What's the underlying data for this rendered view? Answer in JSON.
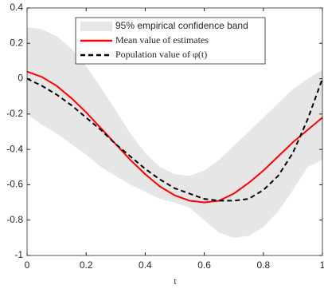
{
  "chart_data": {
    "type": "line",
    "xlabel": "t",
    "x": [
      0,
      0.05,
      0.1,
      0.15,
      0.2,
      0.25,
      0.3,
      0.35,
      0.4,
      0.45,
      0.5,
      0.55,
      0.6,
      0.65,
      0.7,
      0.75,
      0.8,
      0.85,
      0.9,
      0.95,
      1
    ],
    "series": [
      {
        "name": "95% empirical confidence band",
        "color": "#e6e6e6",
        "values": [
          0.29,
          0.28,
          0.24,
          0.17,
          0.07,
          -0.05,
          -0.18,
          -0.31,
          -0.42,
          -0.5,
          -0.54,
          -0.55,
          -0.52,
          -0.46,
          -0.38,
          -0.3,
          -0.22,
          -0.14,
          -0.06,
          0.0,
          0.05
        ],
        "lower": [
          -0.2,
          -0.26,
          -0.31,
          -0.37,
          -0.43,
          -0.5,
          -0.55,
          -0.6,
          -0.64,
          -0.68,
          -0.7,
          -0.73,
          -0.8,
          -0.87,
          -0.9,
          -0.89,
          -0.84,
          -0.75,
          -0.63,
          -0.5,
          -0.46
        ]
      },
      {
        "name": "Mean value of estimates",
        "color": "#ff0000",
        "values": [
          0.04,
          0.01,
          -0.04,
          -0.11,
          -0.19,
          -0.28,
          -0.37,
          -0.46,
          -0.54,
          -0.61,
          -0.66,
          -0.69,
          -0.7,
          -0.69,
          -0.65,
          -0.59,
          -0.52,
          -0.44,
          -0.36,
          -0.29,
          -0.22
        ]
      },
      {
        "name": "Population value of φ(t)",
        "color": "#000000",
        "dash": true,
        "values": [
          0,
          -0.04,
          -0.09,
          -0.15,
          -0.22,
          -0.29,
          -0.37,
          -0.44,
          -0.51,
          -0.57,
          -0.62,
          -0.65,
          -0.68,
          -0.69,
          -0.69,
          -0.68,
          -0.63,
          -0.55,
          -0.42,
          -0.23,
          0
        ]
      }
    ],
    "xlim": [
      0,
      1
    ],
    "xticks": [
      0,
      0.2,
      0.4,
      0.6,
      0.8,
      1
    ],
    "ylim": [
      -1,
      0.4
    ],
    "yticks": [
      -1,
      -0.8,
      -0.6,
      -0.4,
      -0.2,
      0,
      0.2,
      0.4
    ],
    "legend": "top"
  }
}
